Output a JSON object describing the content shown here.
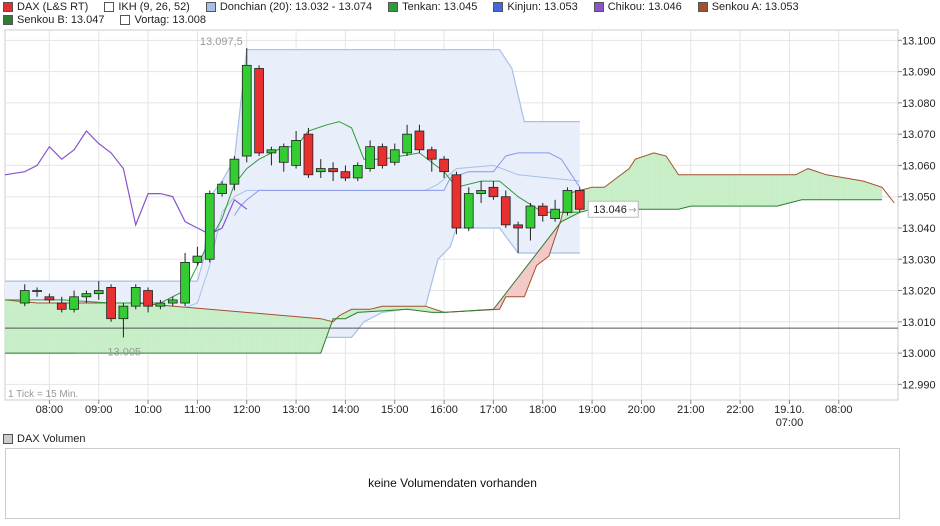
{
  "legend": {
    "items": [
      {
        "label": "DAX (L&S RT)",
        "color": "#e03030"
      },
      {
        "label": "IKH (9, 26, 52)",
        "color": "#ffffff"
      },
      {
        "label": "Donchian (20): 13.032 - 13.074",
        "color": "#a8bfe8"
      },
      {
        "label": "Tenkan: 13.045",
        "color": "#2e9a3a"
      },
      {
        "label": "Kinjun: 13.053",
        "color": "#4466dd"
      },
      {
        "label": "Chikou: 13.046",
        "color": "#8855cc"
      },
      {
        "label": "Senkou A: 13.053",
        "color": "#a0522d"
      }
    ],
    "row2": [
      {
        "label": "Senkou B: 13.047",
        "color": "#2e7d32"
      },
      {
        "label": "Vortag: 13.008",
        "color": "#ffffff"
      }
    ]
  },
  "annotations": {
    "high_label": "13.097,5",
    "low_label": "13.005",
    "last_price": "13.046",
    "tick_info": "1 Tick = 15 Min."
  },
  "volume": {
    "title": "DAX Volumen",
    "message": "keine Volumendaten vorhanden",
    "swatch_color": "#cccccc"
  },
  "colors": {
    "up": "#33cc33",
    "down": "#e83030",
    "donchian_fill": "#e8effb",
    "donchian_line": "#a8bfe8",
    "tenkan": "#2e9a3a",
    "kijun": "#8899ee",
    "chikou": "#8855cc",
    "senkou_a": "#a0522d",
    "cloud_green": "#c8efc8",
    "cloud_red": "#f4c8c8",
    "vortag": "#555555"
  },
  "chart_data": {
    "type": "candlestick",
    "title": "DAX (L&S RT)",
    "xlabel": "",
    "ylabel": "",
    "ylim": [
      12.985,
      13.1033
    ],
    "y_ticks": [
      "12.990",
      "13.000",
      "13.010",
      "13.020",
      "13.030",
      "13.040",
      "13.050",
      "13.060",
      "13.070",
      "13.080",
      "13.090",
      "13.100"
    ],
    "y_tick_values": [
      12.99,
      13.0,
      13.01,
      13.02,
      13.03,
      13.04,
      13.05,
      13.06,
      13.07,
      13.08,
      13.09,
      13.1
    ],
    "x_ticks": [
      {
        "label": "08:00",
        "t": 3
      },
      {
        "label": "09:00",
        "t": 7
      },
      {
        "label": "10:00",
        "t": 11
      },
      {
        "label": "11:00",
        "t": 15
      },
      {
        "label": "12:00",
        "t": 19
      },
      {
        "label": "13:00",
        "t": 23
      },
      {
        "label": "14:00",
        "t": 27
      },
      {
        "label": "15:00",
        "t": 31
      },
      {
        "label": "16:00",
        "t": 35
      },
      {
        "label": "17:00",
        "t": 39
      },
      {
        "label": "18:00",
        "t": 43
      },
      {
        "label": "19:00",
        "t": 47
      },
      {
        "label": "20:00",
        "t": 51
      },
      {
        "label": "21:00",
        "t": 55
      },
      {
        "label": "22:00",
        "t": 59
      },
      {
        "label": "19.10.",
        "label2": "07:00",
        "t": 63
      },
      {
        "label": "08:00",
        "t": 67
      }
    ],
    "x_range": [
      -0.6,
      71.8
    ],
    "vortag": 13.008,
    "candles": [
      {
        "t": 1,
        "o": 13.016,
        "h": 13.022,
        "l": 13.015,
        "c": 13.02
      },
      {
        "t": 2,
        "o": 13.02,
        "h": 13.021,
        "l": 13.018,
        "c": 13.02
      },
      {
        "t": 3,
        "o": 13.018,
        "h": 13.019,
        "l": 13.016,
        "c": 13.017
      },
      {
        "t": 4,
        "o": 13.016,
        "h": 13.018,
        "l": 13.013,
        "c": 13.014
      },
      {
        "t": 5,
        "o": 13.014,
        "h": 13.02,
        "l": 13.013,
        "c": 13.018
      },
      {
        "t": 6,
        "o": 13.018,
        "h": 13.02,
        "l": 13.016,
        "c": 13.019
      },
      {
        "t": 7,
        "o": 13.019,
        "h": 13.023,
        "l": 13.017,
        "c": 13.02
      },
      {
        "t": 8,
        "o": 13.021,
        "h": 13.022,
        "l": 13.01,
        "c": 13.011
      },
      {
        "t": 9,
        "o": 13.011,
        "h": 13.016,
        "l": 13.005,
        "c": 13.015
      },
      {
        "t": 10,
        "o": 13.015,
        "h": 13.022,
        "l": 13.014,
        "c": 13.021
      },
      {
        "t": 11,
        "o": 13.02,
        "h": 13.021,
        "l": 13.013,
        "c": 13.015
      },
      {
        "t": 12,
        "o": 13.015,
        "h": 13.017,
        "l": 13.014,
        "c": 13.016
      },
      {
        "t": 13,
        "o": 13.016,
        "h": 13.018,
        "l": 13.015,
        "c": 13.017
      },
      {
        "t": 14,
        "o": 13.016,
        "h": 13.032,
        "l": 13.015,
        "c": 13.029
      },
      {
        "t": 15,
        "o": 13.029,
        "h": 13.034,
        "l": 13.028,
        "c": 13.031
      },
      {
        "t": 16,
        "o": 13.03,
        "h": 13.052,
        "l": 13.029,
        "c": 13.051
      },
      {
        "t": 17,
        "o": 13.051,
        "h": 13.055,
        "l": 13.05,
        "c": 13.054
      },
      {
        "t": 18,
        "o": 13.054,
        "h": 13.063,
        "l": 13.052,
        "c": 13.062
      },
      {
        "t": 19,
        "o": 13.063,
        "h": 13.0975,
        "l": 13.061,
        "c": 13.092
      },
      {
        "t": 20,
        "o": 13.091,
        "h": 13.092,
        "l": 13.063,
        "c": 13.064
      },
      {
        "t": 21,
        "o": 13.064,
        "h": 13.066,
        "l": 13.06,
        "c": 13.065
      },
      {
        "t": 22,
        "o": 13.061,
        "h": 13.067,
        "l": 13.058,
        "c": 13.066
      },
      {
        "t": 23,
        "o": 13.06,
        "h": 13.071,
        "l": 13.059,
        "c": 13.068
      },
      {
        "t": 24,
        "o": 13.07,
        "h": 13.072,
        "l": 13.056,
        "c": 13.057
      },
      {
        "t": 25,
        "o": 13.058,
        "h": 13.062,
        "l": 13.056,
        "c": 13.059
      },
      {
        "t": 26,
        "o": 13.059,
        "h": 13.061,
        "l": 13.055,
        "c": 13.058
      },
      {
        "t": 27,
        "o": 13.058,
        "h": 13.06,
        "l": 13.055,
        "c": 13.056
      },
      {
        "t": 28,
        "o": 13.056,
        "h": 13.061,
        "l": 13.055,
        "c": 13.06
      },
      {
        "t": 29,
        "o": 13.059,
        "h": 13.068,
        "l": 13.058,
        "c": 13.066
      },
      {
        "t": 30,
        "o": 13.066,
        "h": 13.067,
        "l": 13.059,
        "c": 13.06
      },
      {
        "t": 31,
        "o": 13.061,
        "h": 13.067,
        "l": 13.06,
        "c": 13.065
      },
      {
        "t": 32,
        "o": 13.064,
        "h": 13.073,
        "l": 13.063,
        "c": 13.07
      },
      {
        "t": 33,
        "o": 13.071,
        "h": 13.073,
        "l": 13.064,
        "c": 13.065
      },
      {
        "t": 34,
        "o": 13.065,
        "h": 13.066,
        "l": 13.058,
        "c": 13.062
      },
      {
        "t": 35,
        "o": 13.062,
        "h": 13.063,
        "l": 13.056,
        "c": 13.058
      },
      {
        "t": 36,
        "o": 13.057,
        "h": 13.058,
        "l": 13.038,
        "c": 13.04
      },
      {
        "t": 37,
        "o": 13.04,
        "h": 13.053,
        "l": 13.039,
        "c": 13.051
      },
      {
        "t": 38,
        "o": 13.051,
        "h": 13.055,
        "l": 13.048,
        "c": 13.052
      },
      {
        "t": 39,
        "o": 13.053,
        "h": 13.055,
        "l": 13.049,
        "c": 13.05
      },
      {
        "t": 40,
        "o": 13.05,
        "h": 13.052,
        "l": 13.04,
        "c": 13.041
      },
      {
        "t": 41,
        "o": 13.041,
        "h": 13.042,
        "l": 13.032,
        "c": 13.04
      },
      {
        "t": 42,
        "o": 13.04,
        "h": 13.048,
        "l": 13.036,
        "c": 13.047
      },
      {
        "t": 43,
        "o": 13.047,
        "h": 13.048,
        "l": 13.042,
        "c": 13.044
      },
      {
        "t": 44,
        "o": 13.043,
        "h": 13.049,
        "l": 13.042,
        "c": 13.046
      },
      {
        "t": 45,
        "o": 13.045,
        "h": 13.053,
        "l": 13.044,
        "c": 13.052
      },
      {
        "t": 46,
        "o": 13.052,
        "h": 13.053,
        "l": 13.045,
        "c": 13.046
      }
    ],
    "donchian_upper": [
      [
        -0.6,
        13.023
      ],
      [
        13,
        13.023
      ],
      [
        15,
        13.023
      ],
      [
        15.5,
        13.03
      ],
      [
        16,
        13.05
      ],
      [
        17,
        13.055
      ],
      [
        18,
        13.062
      ],
      [
        19,
        13.097
      ],
      [
        39.5,
        13.097
      ],
      [
        40.5,
        13.091
      ],
      [
        41.5,
        13.074
      ],
      [
        46,
        13.074
      ]
    ],
    "donchian_lower": [
      [
        -0.6,
        13.0
      ],
      [
        5,
        13.0
      ],
      [
        9,
        13.004
      ],
      [
        14,
        13.005
      ],
      [
        27.5,
        13.005
      ],
      [
        28.5,
        13.01
      ],
      [
        30,
        13.013
      ],
      [
        33.5,
        13.015
      ],
      [
        34.5,
        13.03
      ],
      [
        35.5,
        13.034
      ],
      [
        36,
        13.04
      ],
      [
        39.5,
        13.04
      ],
      [
        41,
        13.032
      ],
      [
        46,
        13.032
      ]
    ],
    "donchian_middle": [
      [
        -0.6,
        13.012
      ],
      [
        13,
        13.013
      ],
      [
        15,
        13.016
      ],
      [
        16,
        13.028
      ],
      [
        17,
        13.045
      ],
      [
        18,
        13.05
      ],
      [
        19,
        13.052
      ],
      [
        33.5,
        13.052
      ],
      [
        34.5,
        13.054
      ],
      [
        36,
        13.059
      ],
      [
        39,
        13.06
      ],
      [
        41,
        13.057
      ],
      [
        46,
        13.055
      ]
    ],
    "tenkan": [
      [
        -0.6,
        13.017
      ],
      [
        4,
        13.017
      ],
      [
        8,
        13.016
      ],
      [
        12,
        13.016
      ],
      [
        14,
        13.02
      ],
      [
        16,
        13.036
      ],
      [
        17,
        13.043
      ],
      [
        18,
        13.054
      ],
      [
        19,
        13.059
      ],
      [
        20,
        13.062
      ],
      [
        22,
        13.066
      ],
      [
        23,
        13.066
      ],
      [
        24,
        13.071
      ],
      [
        25.5,
        13.073
      ],
      [
        26.5,
        13.074
      ],
      [
        27.5,
        13.072
      ],
      [
        28.5,
        13.062
      ],
      [
        30,
        13.062
      ],
      [
        33,
        13.064
      ],
      [
        35,
        13.058
      ],
      [
        36,
        13.053
      ],
      [
        38,
        13.055
      ],
      [
        39.5,
        13.055
      ],
      [
        41,
        13.05
      ],
      [
        43,
        13.045
      ],
      [
        45,
        13.045
      ],
      [
        46,
        13.045
      ]
    ],
    "kijun": [
      [
        18,
        13.044
      ],
      [
        18.5,
        13.047
      ],
      [
        19,
        13.049
      ],
      [
        20,
        13.052
      ],
      [
        35,
        13.052
      ],
      [
        35.5,
        13.056
      ],
      [
        37,
        13.058
      ],
      [
        39,
        13.058
      ],
      [
        40,
        13.063
      ],
      [
        41,
        13.064
      ],
      [
        43.5,
        13.064
      ],
      [
        44.5,
        13.062
      ],
      [
        46,
        13.053
      ]
    ],
    "chikou": [
      [
        -0.6,
        13.057
      ],
      [
        1,
        13.058
      ],
      [
        2,
        13.06
      ],
      [
        3,
        13.066
      ],
      [
        4,
        13.062
      ],
      [
        5,
        13.065
      ],
      [
        6,
        13.071
      ],
      [
        7,
        13.067
      ],
      [
        8,
        13.064
      ],
      [
        9,
        13.059
      ],
      [
        10,
        13.041
      ],
      [
        11,
        13.051
      ],
      [
        12,
        13.051
      ],
      [
        13,
        13.05
      ],
      [
        14,
        13.042
      ],
      [
        15,
        13.04
      ],
      [
        16,
        13.038
      ],
      [
        17,
        13.04
      ],
      [
        18,
        13.049
      ],
      [
        19,
        13.046
      ]
    ],
    "senkou_a": [
      [
        -0.6,
        13.017
      ],
      [
        2,
        13.016
      ],
      [
        6,
        13.016
      ],
      [
        10,
        13.016
      ],
      [
        25,
        13.011
      ],
      [
        26,
        13.01
      ],
      [
        26.5,
        13.012
      ],
      [
        27.5,
        13.014
      ],
      [
        29,
        13.014
      ],
      [
        30,
        13.015
      ],
      [
        33.5,
        13.015
      ],
      [
        35,
        13.013
      ],
      [
        39.5,
        13.014
      ],
      [
        40,
        13.018
      ],
      [
        41.5,
        13.018
      ],
      [
        42.5,
        13.028
      ],
      [
        43.5,
        13.031
      ],
      [
        44.5,
        13.043
      ],
      [
        45,
        13.051
      ],
      [
        46,
        13.052
      ],
      [
        47,
        13.053
      ],
      [
        48,
        13.053
      ],
      [
        49,
        13.056
      ],
      [
        50,
        13.059
      ],
      [
        50.5,
        13.062
      ],
      [
        52,
        13.064
      ],
      [
        53,
        13.063
      ],
      [
        54,
        13.057
      ],
      [
        57,
        13.057
      ],
      [
        62,
        13.057
      ],
      [
        63.5,
        13.057
      ],
      [
        64.5,
        13.059
      ],
      [
        66,
        13.057
      ],
      [
        69,
        13.055
      ],
      [
        70.5,
        13.053
      ],
      [
        71.5,
        13.048
      ]
    ],
    "senkou_b": [
      [
        -0.6,
        13.0
      ],
      [
        8,
        13.0
      ],
      [
        21,
        13.0
      ],
      [
        23,
        13.0
      ],
      [
        25,
        13.0
      ],
      [
        26,
        13.011
      ],
      [
        27,
        13.011
      ],
      [
        28,
        13.013
      ],
      [
        32,
        13.014
      ],
      [
        34,
        13.013
      ],
      [
        35,
        13.013
      ],
      [
        39,
        13.014
      ],
      [
        44.5,
        13.042
      ],
      [
        46,
        13.045
      ],
      [
        47,
        13.046
      ],
      [
        54,
        13.046
      ],
      [
        55,
        13.047
      ],
      [
        62,
        13.047
      ],
      [
        64,
        13.049
      ],
      [
        70.5,
        13.049
      ]
    ]
  }
}
